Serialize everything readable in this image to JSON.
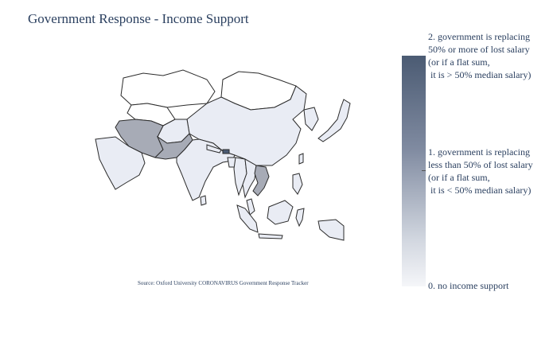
{
  "title": "Government Response - Income Support",
  "source": "Source:  Oxford University CORONAVIRUS Government Response Tracker",
  "colorbar": {
    "labels": [
      "2. government is replacing\n50% or more of lost salary\n(or if a flat sum,\n it is > 50% median salary)",
      "1. government is replacing\nless than 50% of lost salary\n(or if a flat sum,\n it is < 50% median salary)",
      "0. no income support"
    ],
    "colors": {
      "level_0": "#e9ecf4",
      "level_1": "#a7abb6",
      "level_2": "#4b5b73",
      "border": "#2b2b2b",
      "no_data": "#ffffff"
    }
  },
  "map": {
    "region": "Asia",
    "countries_level_1": [
      "Iran",
      "Pakistan",
      "Vietnam",
      "Bhutan"
    ],
    "countries_level_0": [
      "China",
      "India",
      "Saudi Arabia",
      "Afghanistan",
      "Thailand",
      "Indonesia",
      "Philippines",
      "Japan",
      "Malaysia",
      "Oman",
      "Yemen",
      "Myanmar",
      "Laos",
      "Cambodia",
      "Bangladesh",
      "Nepal",
      "Sri Lanka",
      "Korea",
      "Taiwan",
      "Papua New Guinea"
    ],
    "countries_no_data": [
      "Mongolia",
      "Turkmenistan",
      "Uzbekistan",
      "Kazakhstan"
    ]
  }
}
